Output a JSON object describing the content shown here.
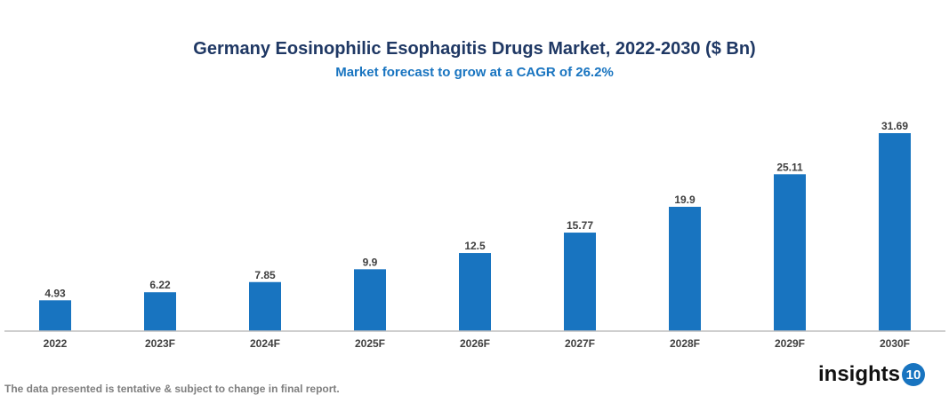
{
  "chart_data": {
    "type": "bar",
    "title": "Germany Eosinophilic Esophagitis Drugs Market, 2022-2030 ($ Bn)",
    "subtitle": "Market forecast to grow at a CAGR of 26.2%",
    "categories": [
      "2022",
      "2023F",
      "2024F",
      "2025F",
      "2026F",
      "2027F",
      "2028F",
      "2029F",
      "2030F"
    ],
    "values": [
      4.93,
      6.22,
      7.85,
      9.9,
      12.5,
      15.77,
      19.9,
      25.11,
      31.69
    ],
    "data_labels": [
      "4.93",
      "6.22",
      "7.85",
      "9.9",
      "12.5",
      "15.77",
      "19.9",
      "25.11",
      "31.69"
    ],
    "xlabel": "",
    "ylabel": "",
    "ylim": [
      0,
      32
    ],
    "grid": false,
    "bar_color": "#1874c0"
  },
  "footer": {
    "note": "The data presented is tentative & subject to change in final report."
  },
  "logo": {
    "text": "insights",
    "badge": "10"
  }
}
